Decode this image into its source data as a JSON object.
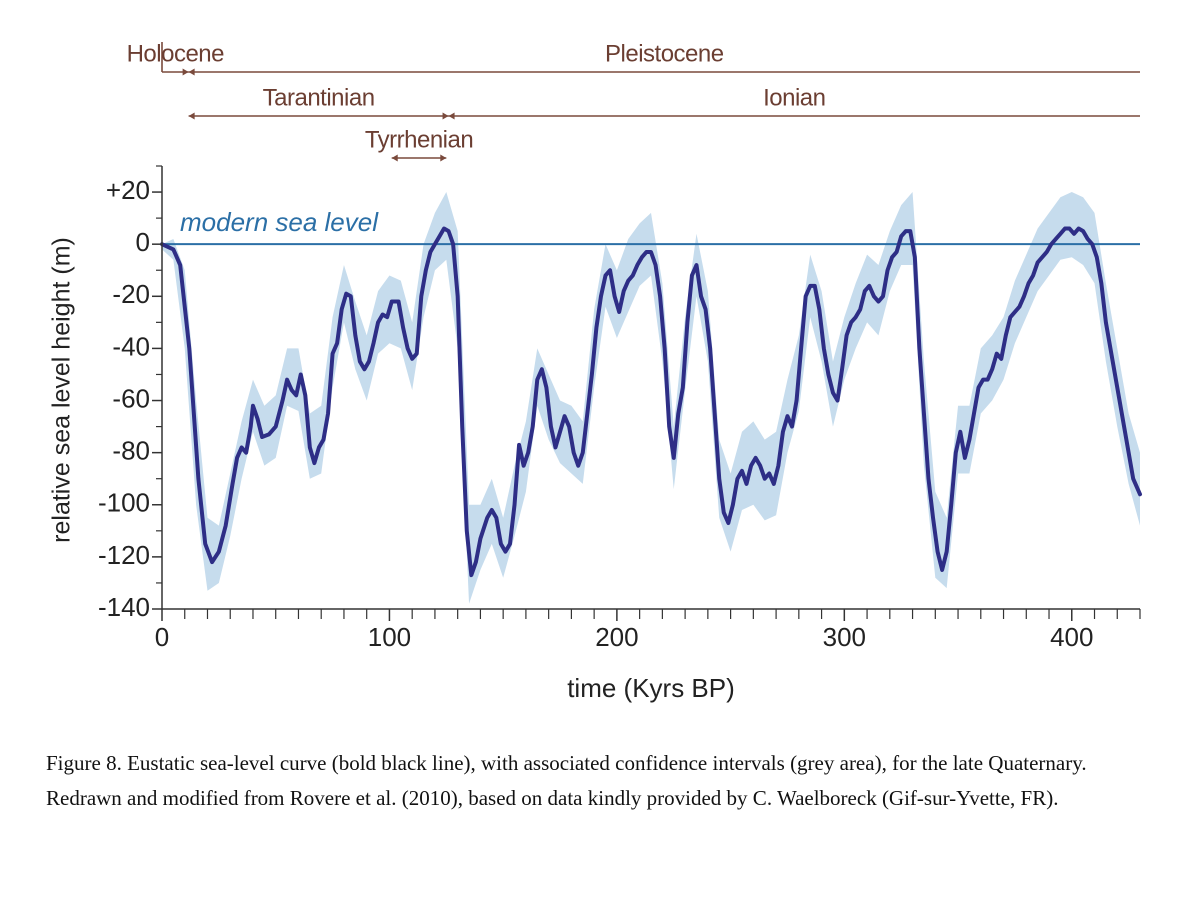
{
  "chart_data": {
    "type": "line",
    "xlabel": "time (Kyrs BP)",
    "ylabel": "relative sea level height (m)",
    "xlim": [
      0,
      430
    ],
    "ylim": [
      -140,
      30
    ],
    "xticks": [
      0,
      100,
      200,
      300,
      400
    ],
    "x_minor_ticks": [
      10,
      20,
      30,
      40,
      50,
      60,
      70,
      80,
      90,
      110,
      120,
      130,
      140,
      150,
      160,
      170,
      180,
      190,
      210,
      220,
      230,
      240,
      250,
      260,
      270,
      280,
      290,
      310,
      320,
      330,
      340,
      350,
      360,
      370,
      380,
      390,
      410,
      420,
      430
    ],
    "yticks": [
      {
        "value": 20,
        "label": "+20"
      },
      0,
      -20,
      -40,
      -60,
      -80,
      -100,
      -120,
      -140
    ],
    "y_minor_ticks": [
      -130,
      -110,
      -90,
      -70,
      -50,
      -30,
      -10,
      10,
      30
    ],
    "reference_line": {
      "value": 0,
      "label": "modern sea level",
      "color": "#2b6fa6"
    },
    "period_color": "#7a4a3c",
    "period_rows": [
      [
        {
          "label": "Holocene",
          "start": 0,
          "end": 11.7
        },
        {
          "label": "Pleistocene",
          "start": 11.7,
          "end": 430
        }
      ],
      [
        {
          "label": "Tarantinian",
          "start": 11.7,
          "end": 126
        },
        {
          "label": "Ionian",
          "start": 126,
          "end": 430
        }
      ],
      [
        {
          "label": "Tyrrhenian",
          "start": 101,
          "end": 125
        }
      ]
    ],
    "line": {
      "color": "#2e2e86",
      "x": [
        0,
        5,
        8,
        12,
        16,
        19,
        22,
        25,
        28,
        31,
        33,
        35,
        37,
        39,
        40,
        42,
        44,
        47,
        50,
        53,
        55,
        57,
        59,
        61,
        63,
        65,
        67,
        69,
        71,
        73,
        75,
        77,
        79,
        81,
        83,
        85,
        87,
        89,
        91,
        93,
        95,
        97,
        99,
        101,
        104,
        106,
        108,
        110,
        112,
        114,
        116,
        118,
        120,
        122,
        124,
        126,
        128,
        130,
        132,
        134,
        136,
        138,
        140,
        143,
        145,
        147,
        149,
        151,
        153,
        155,
        157,
        159,
        161,
        163,
        165,
        167,
        169,
        171,
        173,
        175,
        177,
        179,
        181,
        183,
        185,
        187,
        189,
        191,
        193,
        195,
        197,
        199,
        201,
        203,
        205,
        207,
        209,
        211,
        213,
        215,
        217,
        219,
        221,
        223,
        225,
        227,
        229,
        231,
        233,
        235,
        237,
        239,
        241,
        243,
        245,
        247,
        249,
        251,
        253,
        255,
        257,
        259,
        261,
        263,
        265,
        267,
        269,
        271,
        273,
        275,
        277,
        279,
        281,
        283,
        285,
        287,
        289,
        291,
        293,
        295,
        297,
        299,
        301,
        303,
        305,
        307,
        309,
        311,
        313,
        315,
        317,
        319,
        321,
        323,
        325,
        327,
        329,
        331,
        333,
        335,
        337,
        339,
        341,
        343,
        345,
        347,
        349,
        351,
        353,
        355,
        357,
        359,
        361,
        363,
        365,
        367,
        369,
        371,
        373,
        375,
        377,
        379,
        381,
        383,
        385,
        387,
        389,
        391,
        393,
        395,
        397,
        399,
        401,
        403,
        405,
        407,
        409,
        411,
        413,
        415,
        417,
        419,
        421,
        423,
        425,
        427,
        430
      ],
      "values": [
        0,
        -2,
        -8,
        -40,
        -90,
        -115,
        -122,
        -118,
        -108,
        -92,
        -82,
        -78,
        -80,
        -70,
        -62,
        -67,
        -74,
        -73,
        -70,
        -60,
        -52,
        -56,
        -58,
        -50,
        -58,
        -78,
        -84,
        -78,
        -75,
        -65,
        -42,
        -38,
        -25,
        -19,
        -20,
        -35,
        -45,
        -48,
        -45,
        -38,
        -30,
        -27,
        -28,
        -22,
        -22,
        -32,
        -40,
        -44,
        -42,
        -20,
        -10,
        -3,
        0,
        3,
        6,
        5,
        0,
        -20,
        -70,
        -110,
        -127,
        -122,
        -113,
        -105,
        -102,
        -105,
        -115,
        -118,
        -115,
        -100,
        -77,
        -85,
        -80,
        -70,
        -52,
        -48,
        -55,
        -70,
        -78,
        -72,
        -66,
        -70,
        -80,
        -85,
        -80,
        -65,
        -50,
        -32,
        -20,
        -12,
        -10,
        -20,
        -26,
        -18,
        -14,
        -12,
        -8,
        -5,
        -3,
        -3,
        -8,
        -20,
        -40,
        -70,
        -82,
        -65,
        -55,
        -30,
        -12,
        -8,
        -20,
        -25,
        -40,
        -65,
        -90,
        -103,
        -107,
        -100,
        -90,
        -87,
        -92,
        -85,
        -82,
        -85,
        -90,
        -88,
        -92,
        -85,
        -72,
        -66,
        -70,
        -60,
        -40,
        -20,
        -16,
        -16,
        -25,
        -40,
        -50,
        -57,
        -60,
        -48,
        -35,
        -30,
        -28,
        -25,
        -18,
        -16,
        -20,
        -22,
        -20,
        -10,
        -5,
        -3,
        3,
        5,
        5,
        -5,
        -40,
        -65,
        -90,
        -105,
        -118,
        -125,
        -118,
        -100,
        -80,
        -72,
        -82,
        -75,
        -65,
        -55,
        -52,
        -52,
        -48,
        -42,
        -44,
        -35,
        -28,
        -26,
        -24,
        -20,
        -15,
        -12,
        -7,
        -5,
        -3,
        0,
        2,
        4,
        6,
        6,
        4,
        6,
        5,
        2,
        0,
        -5,
        -15,
        -30,
        -40,
        -50,
        -60,
        -70,
        -80,
        -90,
        -96
      ]
    },
    "band": {
      "color": "#c6dced",
      "x": [
        0,
        5,
        10,
        15,
        20,
        25,
        30,
        35,
        40,
        45,
        50,
        55,
        60,
        65,
        70,
        75,
        80,
        85,
        90,
        95,
        100,
        105,
        110,
        115,
        120,
        125,
        130,
        135,
        140,
        145,
        150,
        155,
        160,
        165,
        170,
        175,
        180,
        185,
        190,
        195,
        200,
        205,
        210,
        215,
        220,
        225,
        230,
        235,
        240,
        245,
        250,
        255,
        260,
        265,
        270,
        275,
        280,
        285,
        290,
        295,
        300,
        305,
        310,
        315,
        320,
        325,
        330,
        335,
        340,
        345,
        350,
        355,
        360,
        365,
        370,
        375,
        380,
        385,
        390,
        395,
        400,
        405,
        410,
        415,
        420,
        425,
        430
      ],
      "upper": [
        0,
        2,
        -10,
        -60,
        -105,
        -108,
        -88,
        -68,
        -52,
        -62,
        -58,
        -40,
        -40,
        -65,
        -62,
        -28,
        -8,
        -22,
        -35,
        -18,
        -12,
        -14,
        -30,
        0,
        12,
        20,
        5,
        -100,
        -100,
        -90,
        -105,
        -85,
        -68,
        -40,
        -50,
        -60,
        -62,
        -68,
        -25,
        0,
        -10,
        2,
        8,
        12,
        -15,
        -70,
        -28,
        4,
        -18,
        -75,
        -88,
        -72,
        -68,
        -75,
        -72,
        -52,
        -35,
        -4,
        -18,
        -45,
        -28,
        -15,
        -4,
        -8,
        5,
        15,
        20,
        -45,
        -95,
        -105,
        -62,
        -62,
        -40,
        -35,
        -28,
        -14,
        -4,
        6,
        12,
        18,
        20,
        18,
        12,
        -15,
        -40,
        -65,
        -80
      ],
      "lower": [
        -2,
        -6,
        -40,
        -100,
        -133,
        -130,
        -112,
        -90,
        -72,
        -85,
        -82,
        -62,
        -64,
        -90,
        -88,
        -55,
        -30,
        -48,
        -60,
        -42,
        -38,
        -40,
        -56,
        -28,
        -10,
        -6,
        -40,
        -138,
        -125,
        -115,
        -128,
        -112,
        -95,
        -62,
        -75,
        -84,
        -88,
        -92,
        -55,
        -24,
        -36,
        -26,
        -16,
        -12,
        -45,
        -94,
        -56,
        -20,
        -45,
        -105,
        -118,
        -102,
        -100,
        -106,
        -104,
        -80,
        -64,
        -28,
        -45,
        -70,
        -52,
        -40,
        -30,
        -35,
        -18,
        -8,
        -8,
        -85,
        -128,
        -132,
        -88,
        -88,
        -65,
        -60,
        -52,
        -38,
        -28,
        -18,
        -12,
        -6,
        -5,
        -8,
        -15,
        -45,
        -70,
        -92,
        -108
      ]
    }
  },
  "caption": {
    "lines": [
      "Figure 8. Eustatic sea-level curve (bold black line), with associated confidence intervals (grey area), for the late Quaternary.",
      "Redrawn and modified from Rovere et al. (2010), based on data kindly provided by C. Waelboreck (Gif-sur-Yvette, FR)."
    ]
  }
}
